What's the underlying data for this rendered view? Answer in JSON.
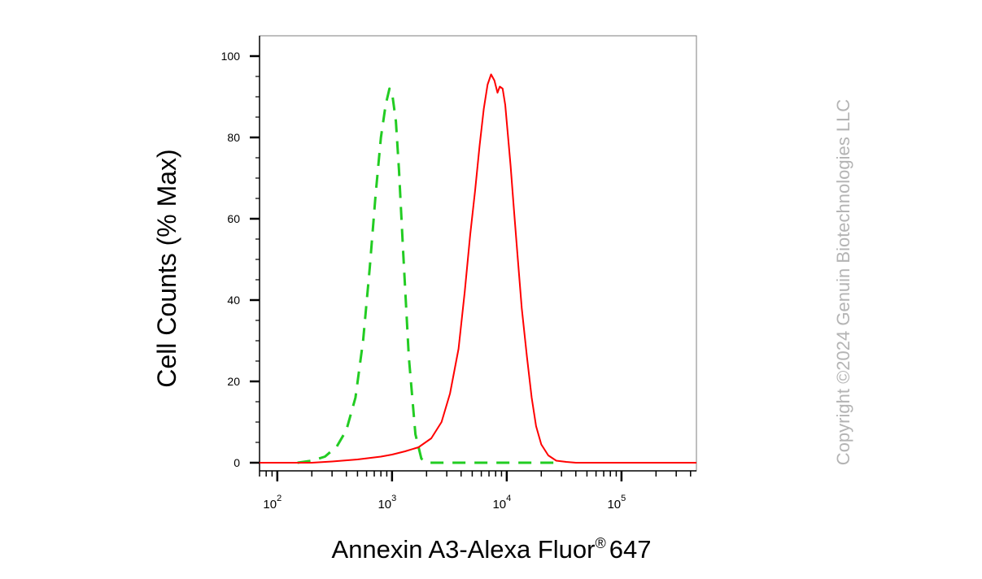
{
  "chart_data": {
    "type": "line",
    "title": "",
    "xlabel": "Annexin A3-Alexa Fluor",
    "xlabel_superscript": "®",
    "xlabel_suffix": "647",
    "ylabel": "Cell Counts (% Max)",
    "x_scale": "log",
    "xlim": [
      70,
      450000
    ],
    "ylim": [
      -2,
      105
    ],
    "grid": false,
    "legend": "none",
    "y_ticks": [
      0,
      20,
      40,
      60,
      80,
      100
    ],
    "x_ticks": [
      {
        "value": 100,
        "base": "10",
        "exp": "2"
      },
      {
        "value": 1000,
        "base": "10",
        "exp": "3"
      },
      {
        "value": 10000,
        "base": "10",
        "exp": "4"
      },
      {
        "value": 100000,
        "base": "10",
        "exp": "5"
      }
    ],
    "series": [
      {
        "color": "#22cc22",
        "dash": "dashed",
        "x": [
          150,
          200,
          260,
          330,
          400,
          480,
          560,
          640,
          720,
          800,
          880,
          950,
          1000,
          1080,
          1150,
          1250,
          1400,
          1600,
          1800,
          2000,
          3000,
          10000,
          30000
        ],
        "y": [
          0,
          0.5,
          1.5,
          4,
          8,
          16,
          30,
          48,
          66,
          80,
          88,
          92,
          91,
          84,
          72,
          52,
          26,
          7,
          1,
          0,
          0,
          0,
          0
        ]
      },
      {
        "color": "#ff0000",
        "dash": "solid",
        "x": [
          70,
          200,
          300,
          500,
          800,
          1000,
          1300,
          1700,
          2200,
          2700,
          3200,
          3800,
          4300,
          4800,
          5300,
          5800,
          6300,
          6800,
          7300,
          7800,
          8300,
          8700,
          9200,
          9700,
          10200,
          10800,
          11500,
          12500,
          13500,
          15000,
          16500,
          18000,
          20000,
          23000,
          27000,
          33000,
          40000,
          60000,
          100000,
          200000,
          450000
        ],
        "y": [
          0,
          0,
          0.3,
          0.8,
          1.5,
          2,
          2.8,
          3.8,
          6,
          10,
          17,
          28,
          42,
          56,
          67,
          78,
          87,
          93,
          95.5,
          94,
          91,
          92.5,
          92,
          88,
          81,
          73,
          63,
          50,
          38,
          26,
          16,
          9,
          4.5,
          1.8,
          0.5,
          0.2,
          0,
          0,
          0,
          0,
          0
        ]
      }
    ]
  },
  "copyright": "Copyright ©2024 Genuin Biotechnologies LLC"
}
